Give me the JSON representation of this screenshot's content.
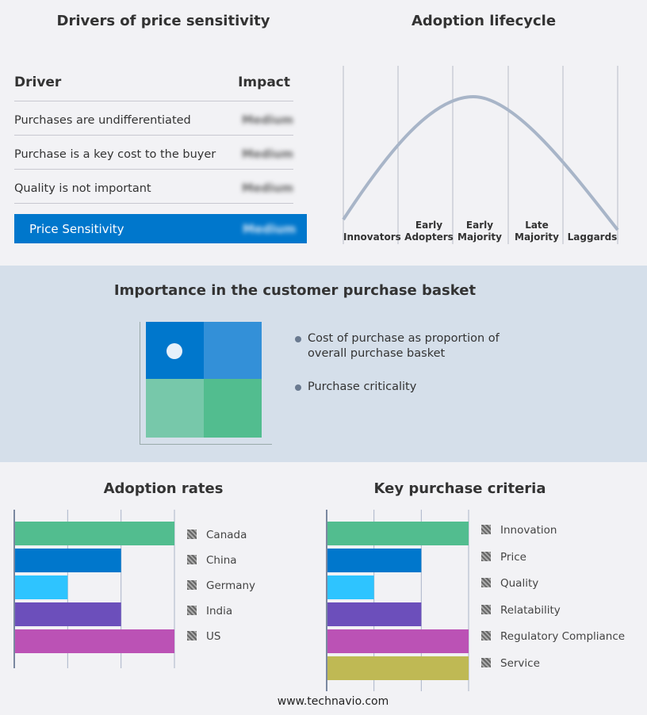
{
  "drivers": {
    "title": "Drivers of price sensitivity",
    "col_driver": "Driver",
    "col_impact": "Impact",
    "rows": [
      {
        "driver": "Purchases are undifferentiated",
        "impact": "Medium"
      },
      {
        "driver": "Purchase is a key cost to the buyer",
        "impact": "Medium"
      },
      {
        "driver": "Quality is not important",
        "impact": "Medium"
      }
    ],
    "summary": {
      "label": "Price Sensitivity",
      "impact": "Medium"
    },
    "accent": "#0077cc"
  },
  "lifecycle": {
    "title": "Adoption lifecycle",
    "stages": [
      "Innovators",
      "Early Adopters",
      "Early Majority",
      "Late Majority",
      "Laggards"
    ]
  },
  "basket": {
    "title": "Importance in the customer purchase basket",
    "legend": [
      "Cost of purchase as proportion of overall purchase basket",
      "Purchase criticality"
    ],
    "colors": [
      "#0077cc",
      "#3390d8",
      "#77c8aa",
      "#52bd8f"
    ]
  },
  "chart_data": [
    {
      "type": "bar",
      "orientation": "horizontal",
      "title": "Adoption rates",
      "categories": [
        "Canada",
        "China",
        "Germany",
        "India",
        "US"
      ],
      "values": [
        3,
        2,
        1,
        2,
        3
      ],
      "xlim": [
        0,
        3
      ],
      "grid": true,
      "legend": "right",
      "colors": [
        "#52bd8f",
        "#0077cc",
        "#2ec4ff",
        "#6c4fbb",
        "#bb52b5"
      ]
    },
    {
      "type": "bar",
      "orientation": "horizontal",
      "title": "Key purchase criteria",
      "categories": [
        "Innovation",
        "Price",
        "Quality",
        "Relatability",
        "Regulatory Compliance",
        "Service"
      ],
      "values": [
        3,
        2,
        1,
        2,
        3,
        3
      ],
      "xlim": [
        0,
        3
      ],
      "grid": true,
      "legend": "right",
      "colors": [
        "#52bd8f",
        "#0077cc",
        "#2ec4ff",
        "#6c4fbb",
        "#bb52b5",
        "#bfb954"
      ]
    }
  ],
  "footer": "www.technavio.com"
}
